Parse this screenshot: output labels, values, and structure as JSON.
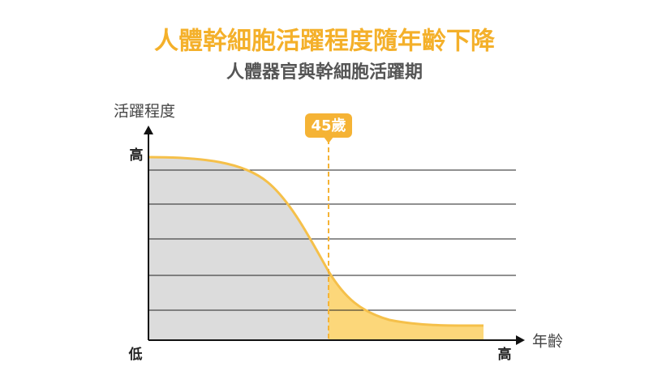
{
  "header": {
    "title": "人體幹細胞活躍程度隨年齡下降",
    "subtitle": "人體器官與幹細胞活躍期"
  },
  "diagram": {
    "y_axis_label": "活躍程度",
    "y_high_label": "高",
    "origin_label": "低",
    "x_high_label": "高",
    "x_axis_label": "年齡",
    "marker_label": "45歲"
  }
}
